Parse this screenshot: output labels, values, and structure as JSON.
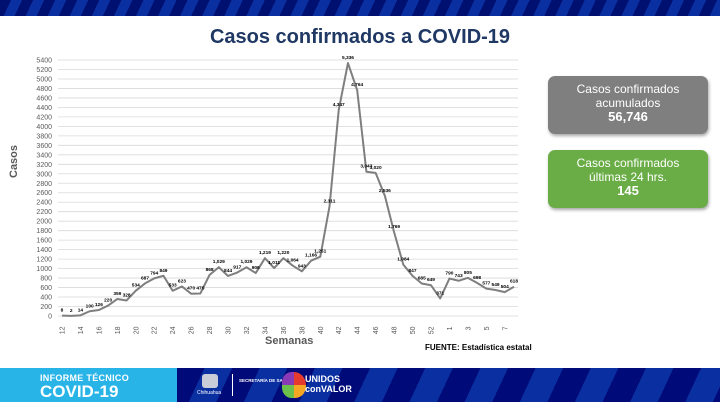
{
  "header": {
    "title": "Casos confirmados a COVID-19"
  },
  "cards": {
    "accumulated": {
      "line1": "Casos confirmados",
      "line2": "acumulados",
      "value": "56,746",
      "color": "#7f7f7f"
    },
    "last24": {
      "line1": "Casos confirmados",
      "line2": "últimas 24 hrs.",
      "value": "145",
      "color": "#6aad46"
    }
  },
  "source": "FUENTE: Estadística estatal",
  "footer": {
    "line1": "INFORME TÉCNICO",
    "line2": "COVID-19",
    "gov_label": "Chihuahua",
    "secretaria": "SECRETARÍA DE SALUD",
    "brand1": "UNIDOS",
    "brand2": "conVALOR"
  },
  "chart_data": {
    "type": "line",
    "title": "Casos confirmados a COVID-19",
    "xlabel": "Semanas",
    "ylabel": "Casos",
    "ylim": [
      0,
      5400
    ],
    "ytick_step": 200,
    "grid": true,
    "legend": null,
    "line_color": "#7f7f7f",
    "x": [
      "12",
      "13",
      "14",
      "15",
      "16",
      "17",
      "18",
      "19",
      "20",
      "21",
      "22",
      "23",
      "24",
      "25",
      "26",
      "27",
      "28",
      "29",
      "30",
      "31",
      "32",
      "33",
      "34",
      "35",
      "36",
      "37",
      "38",
      "39",
      "40",
      "41",
      "42",
      "43",
      "44",
      "45",
      "46",
      "47",
      "48",
      "49",
      "50",
      "51",
      "52",
      "53",
      "1",
      "2",
      "3",
      "4",
      "5",
      "6",
      "7",
      "8"
    ],
    "x_tick_labels": [
      "12",
      "14",
      "16",
      "18",
      "20",
      "22",
      "24",
      "26",
      "28",
      "30",
      "32",
      "34",
      "36",
      "38",
      "40",
      "42",
      "44",
      "46",
      "48",
      "50",
      "52",
      "1",
      "3",
      "5",
      "7"
    ],
    "values": [
      8,
      2,
      14,
      100,
      126,
      220,
      359,
      328,
      534,
      687,
      794,
      849,
      533,
      623,
      470,
      475,
      868,
      1029,
      844,
      917,
      1029,
      906,
      1219,
      1011,
      1220,
      1064,
      943,
      1166,
      1251,
      2311,
      4347,
      5336,
      4764,
      3043,
      3020,
      2536,
      1769,
      1084,
      847,
      685,
      649,
      371,
      790,
      743,
      805,
      698,
      577,
      549,
      504,
      618
    ],
    "data_labels": [
      "8",
      "2",
      "14",
      "100",
      "126",
      "220",
      "359",
      "328",
      "534",
      "687",
      "794",
      "849",
      "533",
      "623",
      "470",
      "475",
      "868",
      "1,029",
      "844",
      "917",
      "1,029",
      "906",
      "1,219",
      "1,011",
      "1,220",
      "1,064",
      "943",
      "1,166",
      "1,251",
      "2,311",
      "4,347",
      "5,336",
      "4,764",
      "3,043",
      "3,020",
      "2,536",
      "1,769",
      "1,084",
      "847",
      "685",
      "649",
      "371",
      "790",
      "743",
      "805",
      "698",
      "577",
      "549",
      "504",
      "618"
    ]
  }
}
